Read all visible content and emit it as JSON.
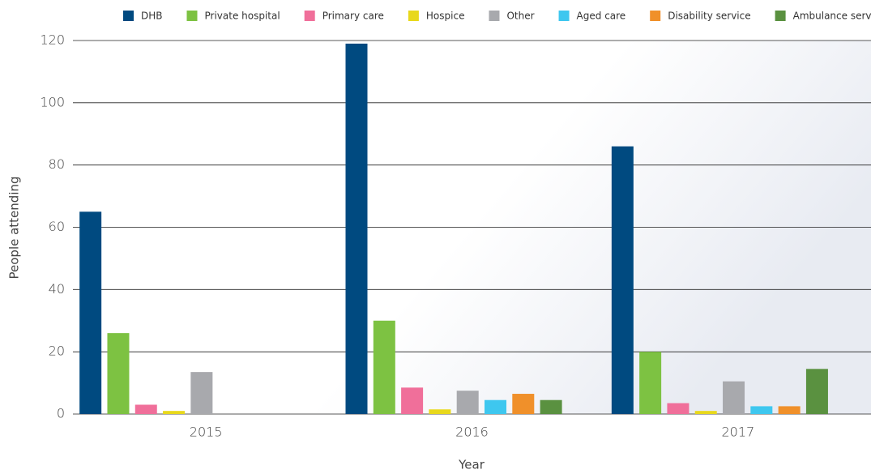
{
  "chart_data": {
    "type": "bar",
    "xlabel": "Year",
    "ylabel": "People attending",
    "categories": [
      "2015",
      "2016",
      "2017"
    ],
    "series": [
      {
        "name": "DHB",
        "color": "#004a80",
        "values": [
          65,
          119,
          86
        ]
      },
      {
        "name": "Private hospital",
        "color": "#7dc242",
        "values": [
          26,
          30,
          20
        ]
      },
      {
        "name": "Primary care",
        "color": "#f06f9a",
        "values": [
          3,
          8.5,
          3.5
        ]
      },
      {
        "name": "Hospice",
        "color": "#e8d81c",
        "values": [
          1,
          1.5,
          1
        ]
      },
      {
        "name": "Other",
        "color": "#a8a9ad",
        "values": [
          13.5,
          7.5,
          10.5
        ]
      },
      {
        "name": "Aged care",
        "color": "#3ec7ef",
        "values": [
          0,
          4.5,
          2.5
        ]
      },
      {
        "name": "Disability service",
        "color": "#f0902a",
        "values": [
          0,
          6.5,
          2.5
        ]
      },
      {
        "name": "Ambulance service",
        "color": "#5a9140",
        "values": [
          0,
          4.5,
          14.5
        ]
      }
    ],
    "ylim": [
      0,
      120
    ],
    "yticks": [
      0,
      20,
      40,
      60,
      80,
      100,
      120
    ],
    "grid": true,
    "legend": "top"
  }
}
